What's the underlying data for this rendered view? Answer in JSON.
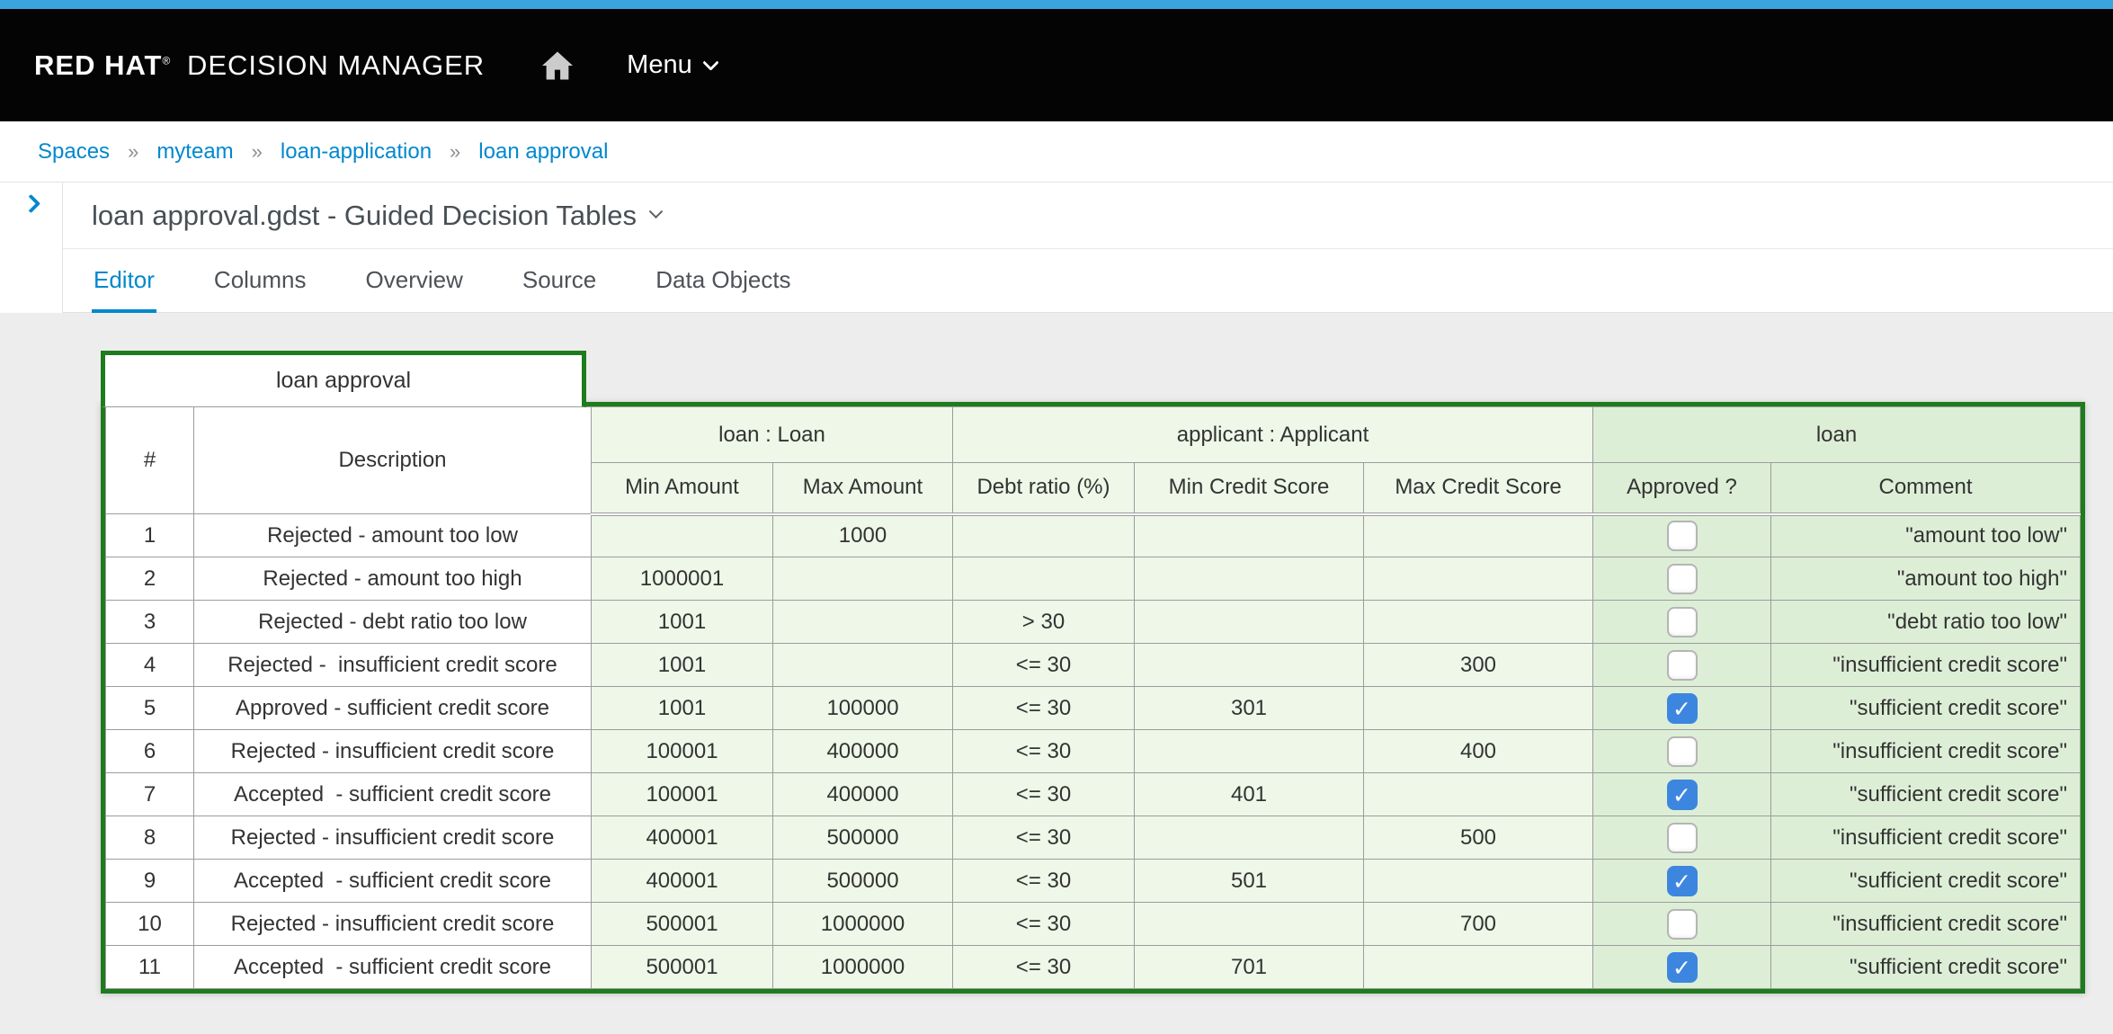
{
  "topbar": {
    "brand_bold": "RED HAT",
    "brand_trademark": "®",
    "brand_rest": "DECISION MANAGER",
    "menu_label": "Menu"
  },
  "breadcrumb": {
    "separator": "»",
    "items": [
      "Spaces",
      "myteam",
      "loan-application",
      "loan approval"
    ]
  },
  "asset": {
    "title": "loan approval.gdst - Guided Decision Tables",
    "tabs": [
      {
        "label": "Editor",
        "active": true
      },
      {
        "label": "Columns",
        "active": false
      },
      {
        "label": "Overview",
        "active": false
      },
      {
        "label": "Source",
        "active": false
      },
      {
        "label": "Data Objects",
        "active": false
      }
    ]
  },
  "table": {
    "title": "loan approval",
    "row_number_header": "#",
    "description_header": "Description",
    "groups": [
      {
        "label": "loan : Loan",
        "type": "condition",
        "columns": [
          "Min Amount",
          "Max Amount"
        ]
      },
      {
        "label": "applicant : Applicant",
        "type": "condition",
        "columns": [
          "Debt ratio (%)",
          "Min Credit Score",
          "Max Credit Score"
        ]
      },
      {
        "label": "loan",
        "type": "action",
        "columns": [
          "Approved ?",
          "Comment"
        ]
      }
    ],
    "rows": [
      {
        "num": "1",
        "description": "Rejected - amount too low",
        "min_amount": "",
        "max_amount": "1000",
        "debt_ratio": "",
        "min_credit": "",
        "max_credit": "",
        "approved": false,
        "comment": "\"amount too low\""
      },
      {
        "num": "2",
        "description": "Rejected - amount too high",
        "min_amount": "1000001",
        "max_amount": "",
        "debt_ratio": "",
        "min_credit": "",
        "max_credit": "",
        "approved": false,
        "comment": "\"amount too high\""
      },
      {
        "num": "3",
        "description": "Rejected - debt ratio too low",
        "min_amount": "1001",
        "max_amount": "",
        "debt_ratio": "> 30",
        "min_credit": "",
        "max_credit": "",
        "approved": false,
        "comment": "\"debt ratio too low\""
      },
      {
        "num": "4",
        "description": "Rejected -  insufficient credit score",
        "min_amount": "1001",
        "max_amount": "",
        "debt_ratio": "<= 30",
        "min_credit": "",
        "max_credit": "300",
        "approved": false,
        "comment": "\"insufficient credit score\""
      },
      {
        "num": "5",
        "description": "Approved - sufficient credit score",
        "min_amount": "1001",
        "max_amount": "100000",
        "debt_ratio": "<= 30",
        "min_credit": "301",
        "max_credit": "",
        "approved": true,
        "comment": "\"sufficient credit score\""
      },
      {
        "num": "6",
        "description": "Rejected - insufficient credit score",
        "min_amount": "100001",
        "max_amount": "400000",
        "debt_ratio": "<= 30",
        "min_credit": "",
        "max_credit": "400",
        "approved": false,
        "comment": "\"insufficient credit score\""
      },
      {
        "num": "7",
        "description": "Accepted  - sufficient credit score",
        "min_amount": "100001",
        "max_amount": "400000",
        "debt_ratio": "<= 30",
        "min_credit": "401",
        "max_credit": "",
        "approved": true,
        "comment": "\"sufficient credit score\""
      },
      {
        "num": "8",
        "description": "Rejected - insufficient credit score",
        "min_amount": "400001",
        "max_amount": "500000",
        "debt_ratio": "<= 30",
        "min_credit": "",
        "max_credit": "500",
        "approved": false,
        "comment": "\"insufficient credit score\""
      },
      {
        "num": "9",
        "description": "Accepted  - sufficient credit score",
        "min_amount": "400001",
        "max_amount": "500000",
        "debt_ratio": "<= 30",
        "min_credit": "501",
        "max_credit": "",
        "approved": true,
        "comment": "\"sufficient credit score\""
      },
      {
        "num": "10",
        "description": "Rejected - insufficient credit score",
        "min_amount": "500001",
        "max_amount": "1000000",
        "debt_ratio": "<= 30",
        "min_credit": "",
        "max_credit": "700",
        "approved": false,
        "comment": "\"insufficient credit score\""
      },
      {
        "num": "11",
        "description": "Accepted  - sufficient credit score",
        "min_amount": "500001",
        "max_amount": "1000000",
        "debt_ratio": "<= 30",
        "min_credit": "701",
        "max_credit": "",
        "approved": true,
        "comment": "\"sufficient credit score\""
      }
    ]
  },
  "colors": {
    "accent_blue": "#0088ce",
    "top_strip_blue": "#39a5dc",
    "table_border_green": "#1e7b1e",
    "condition_bg": "#eef7e8",
    "action_bg": "#ddeed6",
    "checkbox_blue": "#3d86e0"
  }
}
